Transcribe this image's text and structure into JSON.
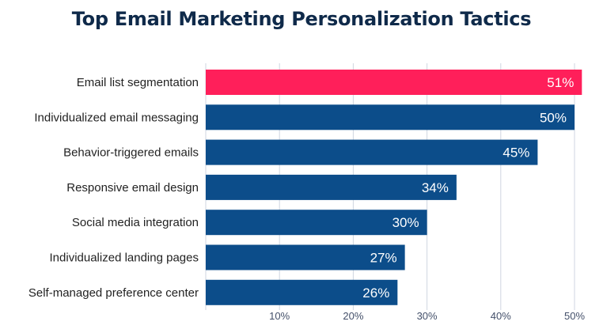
{
  "chart_data": {
    "type": "bar",
    "orientation": "horizontal",
    "title": "Top Email Marketing Personalization Tactics",
    "xlabel": "",
    "ylabel": "",
    "categories": [
      "Email list segmentation",
      "Individualized email messaging",
      "Behavior-triggered emails",
      "Responsive email design",
      "Social media integration",
      "Individualized landing pages",
      "Self-managed preference center"
    ],
    "values": [
      51,
      50,
      45,
      34,
      30,
      27,
      26
    ],
    "value_labels": [
      "51%",
      "50%",
      "45%",
      "34%",
      "30%",
      "27%",
      "26%"
    ],
    "xlim": [
      0,
      50
    ],
    "xticks": [
      10,
      20,
      30,
      40,
      50
    ],
    "xtick_labels": [
      "10%",
      "20%",
      "30%",
      "40%",
      "50%"
    ],
    "grid": true,
    "colors": {
      "highlight": "#ff1f5a",
      "bar": "#0c4d8a",
      "grid": "#cfd6e0",
      "title": "#0f2a4a"
    },
    "highlight_index": 0
  }
}
